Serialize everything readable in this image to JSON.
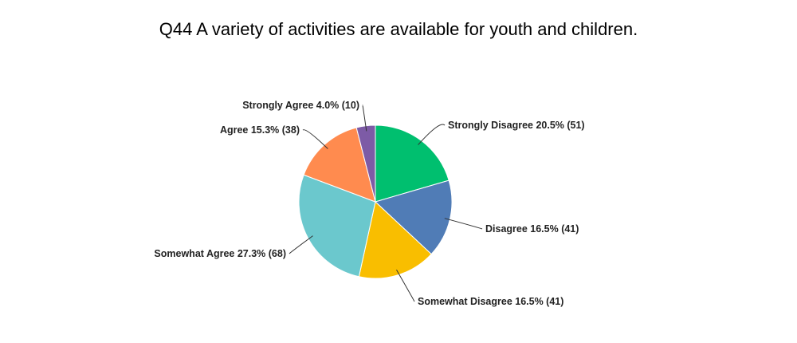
{
  "chart_data": {
    "type": "pie",
    "title": "Q44 A variety of activities are available for youth and children.",
    "slices": [
      {
        "label": "Strongly Disagree",
        "percent": 20.5,
        "count": 51,
        "display": "Strongly Disagree 20.5% (51)",
        "color": "#00BF6F"
      },
      {
        "label": "Disagree",
        "percent": 16.5,
        "count": 41,
        "display": "Disagree 16.5% (41)",
        "color": "#507CB6"
      },
      {
        "label": "Somewhat Disagree",
        "percent": 16.5,
        "count": 41,
        "display": "Somewhat Disagree 16.5% (41)",
        "color": "#F9BE00"
      },
      {
        "label": "Somewhat Agree",
        "percent": 27.3,
        "count": 68,
        "display": "Somewhat Agree 27.3% (68)",
        "color": "#6BC8CD"
      },
      {
        "label": "Agree",
        "percent": 15.3,
        "count": 38,
        "display": "Agree 15.3% (38)",
        "color": "#FF8B4F"
      },
      {
        "label": "Strongly Agree",
        "percent": 4.0,
        "count": 10,
        "display": "Strongly Agree 4.0% (10)",
        "color": "#7D5BA6"
      }
    ],
    "start_angle": "12 o'clock",
    "direction": "clockwise",
    "legend": "none"
  }
}
